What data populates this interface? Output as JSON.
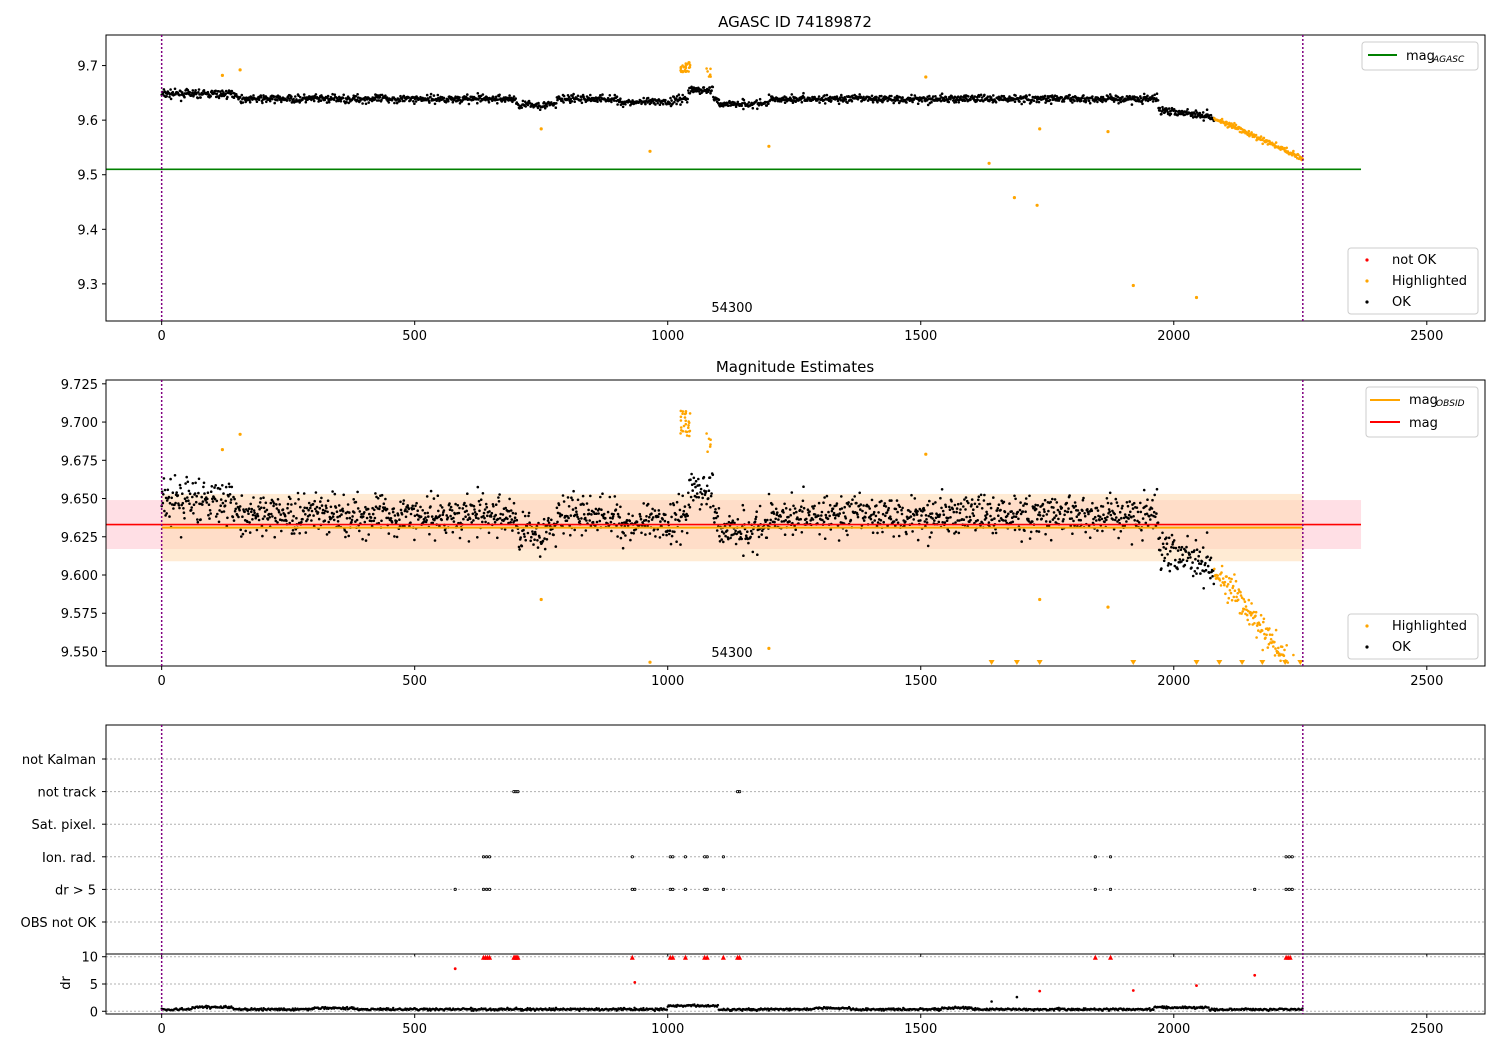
{
  "colors": {
    "ok": "#000000",
    "highlighted": "#ffa500",
    "not_ok": "#ff0000",
    "agasc_line": "#008000",
    "mag_line": "#ff0000",
    "mag_obsid_line": "#ffa500",
    "obsid_marker": "#800080",
    "band_red": "#ffc0cb",
    "band_orange": "#ffdab0"
  },
  "chart_data": [
    {
      "type": "scatter",
      "title": "AGASC ID 74189872",
      "xlabel": "",
      "ylabel": "",
      "xlim": [
        -110,
        2615
      ],
      "ylim": [
        9.232,
        9.756
      ],
      "xticks": [
        "0",
        "500",
        "1000",
        "1500",
        "2000",
        "2500"
      ],
      "yticks": [
        "9.3",
        "9.4",
        "9.5",
        "9.6",
        "9.7"
      ],
      "obsid_label": "54300",
      "obsid_label_x": 1130,
      "obsid_bounds": [
        0,
        2255
      ],
      "reference_line": {
        "name": "mag",
        "subscript": "AGASC",
        "value": 9.51,
        "x_range": [
          -110,
          2370
        ]
      },
      "legend_top": [
        {
          "label": "mag",
          "subscript": "AGASC"
        }
      ],
      "legend_bottom": [
        "not OK",
        "Highlighted",
        "OK"
      ],
      "highlighted_outliers": [
        {
          "x": 120,
          "y": 9.682
        },
        {
          "x": 155,
          "y": 9.692
        },
        {
          "x": 750,
          "y": 9.584
        },
        {
          "x": 965,
          "y": 9.543
        },
        {
          "x": 1200,
          "y": 9.552
        },
        {
          "x": 1510,
          "y": 9.679
        },
        {
          "x": 1635,
          "y": 9.521
        },
        {
          "x": 1685,
          "y": 9.458
        },
        {
          "x": 1730,
          "y": 9.444
        },
        {
          "x": 1735,
          "y": 9.584
        },
        {
          "x": 1870,
          "y": 9.579
        },
        {
          "x": 1920,
          "y": 9.297
        },
        {
          "x": 2045,
          "y": 9.275
        }
      ]
    },
    {
      "type": "scatter",
      "title": "Magnitude Estimates",
      "xlabel": "",
      "ylabel": "",
      "xlim": [
        -110,
        2615
      ],
      "ylim": [
        9.5405,
        9.7275
      ],
      "xticks": [
        "0",
        "500",
        "1000",
        "1500",
        "2000",
        "2500"
      ],
      "yticks": [
        "9.550",
        "9.575",
        "9.600",
        "9.625",
        "9.650",
        "9.675",
        "9.700",
        "9.725"
      ],
      "obsid_label": "54300",
      "obsid_label_x": 1130,
      "obsid_bounds": [
        0,
        2255
      ],
      "mag_line": {
        "name": "mag",
        "value": 9.633,
        "band": [
          9.617,
          9.649
        ],
        "x_range": [
          -110,
          2370
        ]
      },
      "mag_obsid_line": {
        "name": "mag",
        "subscript": "OBSID",
        "value": 9.631,
        "band": [
          9.609,
          9.653
        ],
        "x_range": [
          0,
          2255
        ]
      },
      "legend_top": [
        {
          "label": "mag",
          "subscript": "OBSID"
        },
        {
          "label": "mag",
          "subscript": ""
        }
      ],
      "legend_bottom": [
        "Highlighted",
        "OK"
      ],
      "clipped_markers_x": [
        1640,
        1690,
        1735,
        1920,
        2045,
        2090,
        2135,
        2175,
        2220,
        2250
      ]
    },
    {
      "type": "scatter",
      "title": "",
      "xlabel": "",
      "ylabel": "",
      "xlim": [
        -110,
        2615
      ],
      "xticks": [
        "0",
        "500",
        "1000",
        "1500",
        "2000",
        "2500"
      ],
      "flag_rows": [
        "not Kalman",
        "not track",
        "Sat. pixel.",
        "Ion. rad.",
        "dr > 5",
        "OBS not OK"
      ],
      "flag_points": {
        "not track": [
          696,
          700,
          704,
          1138,
          1142
        ],
        "Ion. rad.": [
          636,
          642,
          648,
          930,
          1005,
          1010,
          1035,
          1073,
          1078,
          1110,
          1845,
          1875,
          2222,
          2228,
          2234
        ],
        "dr > 5": [
          580,
          636,
          642,
          648,
          930,
          935,
          1005,
          1010,
          1035,
          1073,
          1078,
          1110,
          1845,
          1875,
          2160,
          2222,
          2228,
          2234
        ]
      }
    },
    {
      "type": "scatter",
      "title": "",
      "xlabel": "",
      "ylabel": "dr",
      "xlim": [
        -110,
        2615
      ],
      "ylim": [
        -0.5,
        10.5
      ],
      "yticks": [
        "0",
        "5",
        "10"
      ],
      "clipped_markers_x": [
        636,
        640,
        644,
        648,
        696,
        698,
        700,
        702,
        704,
        930,
        1005,
        1010,
        1035,
        1073,
        1078,
        1110,
        1138,
        1142,
        1845,
        1875,
        2222,
        2226,
        2230
      ],
      "red_points": [
        {
          "x": 580,
          "y": 7.8
        },
        {
          "x": 935,
          "y": 5.3
        },
        {
          "x": 1735,
          "y": 3.7
        },
        {
          "x": 1920,
          "y": 3.8
        },
        {
          "x": 2045,
          "y": 4.7
        },
        {
          "x": 2160,
          "y": 6.6
        }
      ],
      "black_outliers": [
        {
          "x": 1640,
          "y": 1.8
        },
        {
          "x": 1690,
          "y": 2.6
        }
      ]
    }
  ]
}
